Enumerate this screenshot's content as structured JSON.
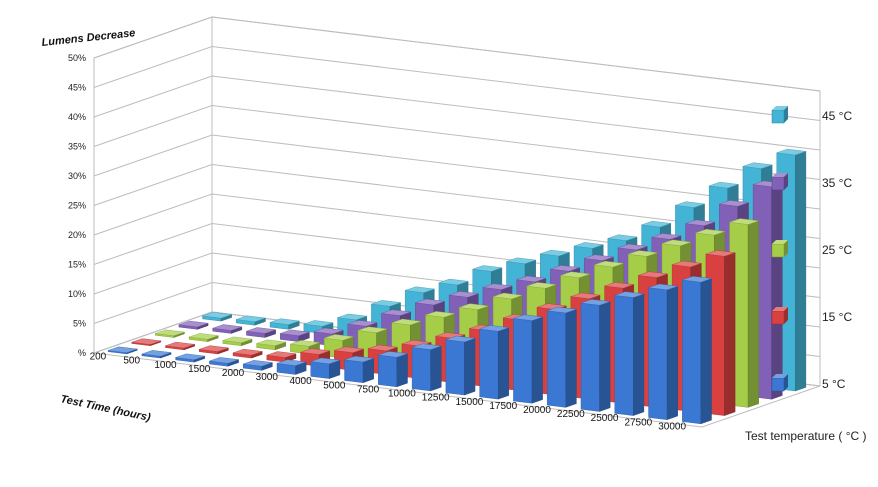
{
  "chart_data": {
    "type": "bar",
    "title": "Lumens Decrease",
    "xlabel": "Test Time (hours)",
    "zlabel": "Test temperature ( °C )",
    "categories": [
      "200",
      "500",
      "1000",
      "1500",
      "2000",
      "3000",
      "4000",
      "5000",
      "7500",
      "10000",
      "12500",
      "15000",
      "17500",
      "20000",
      "22500",
      "25000",
      "27500",
      "30000"
    ],
    "yticks": [
      "%",
      "5%",
      "10%",
      "15%",
      "20%",
      "25%",
      "30%",
      "35%",
      "40%",
      "45%",
      "50%"
    ],
    "ylim": [
      0,
      50
    ],
    "grid": true,
    "legend_position": "right",
    "series": [
      {
        "name": "5  °C",
        "color": "#3b78d4",
        "values": [
          0.2,
          0.3,
          0.4,
          0.5,
          0.7,
          1.5,
          2.5,
          3.5,
          5,
          7,
          9,
          11.5,
          14,
          16,
          18,
          20,
          22,
          24
        ]
      },
      {
        "name": "15  °C",
        "color": "#d94141",
        "values": [
          0.2,
          0.3,
          0.4,
          0.5,
          0.8,
          2,
          3,
          4,
          5.5,
          7.5,
          9.5,
          12,
          14.5,
          17,
          19.5,
          22,
          24.5,
          27
        ]
      },
      {
        "name": "25  °C",
        "color": "#a5cd47",
        "values": [
          0.3,
          0.4,
          0.5,
          0.7,
          1.3,
          3,
          5,
          7,
          9,
          11,
          13.5,
          16,
          18.5,
          21,
          23.5,
          26,
          28.5,
          31
        ]
      },
      {
        "name": "35  °C",
        "color": "#8160b8",
        "values": [
          0.4,
          0.5,
          0.7,
          1,
          2,
          4,
          6.5,
          9,
          11,
          13,
          15,
          17.5,
          20,
          22.5,
          25,
          28,
          32,
          36
        ]
      },
      {
        "name": "45  °C",
        "color": "#43b4d6",
        "values": [
          0.5,
          0.6,
          0.8,
          1.2,
          3,
          6,
          9,
          11,
          14,
          16,
          18,
          20,
          22,
          25,
          29,
          33,
          37,
          40
        ]
      }
    ]
  }
}
